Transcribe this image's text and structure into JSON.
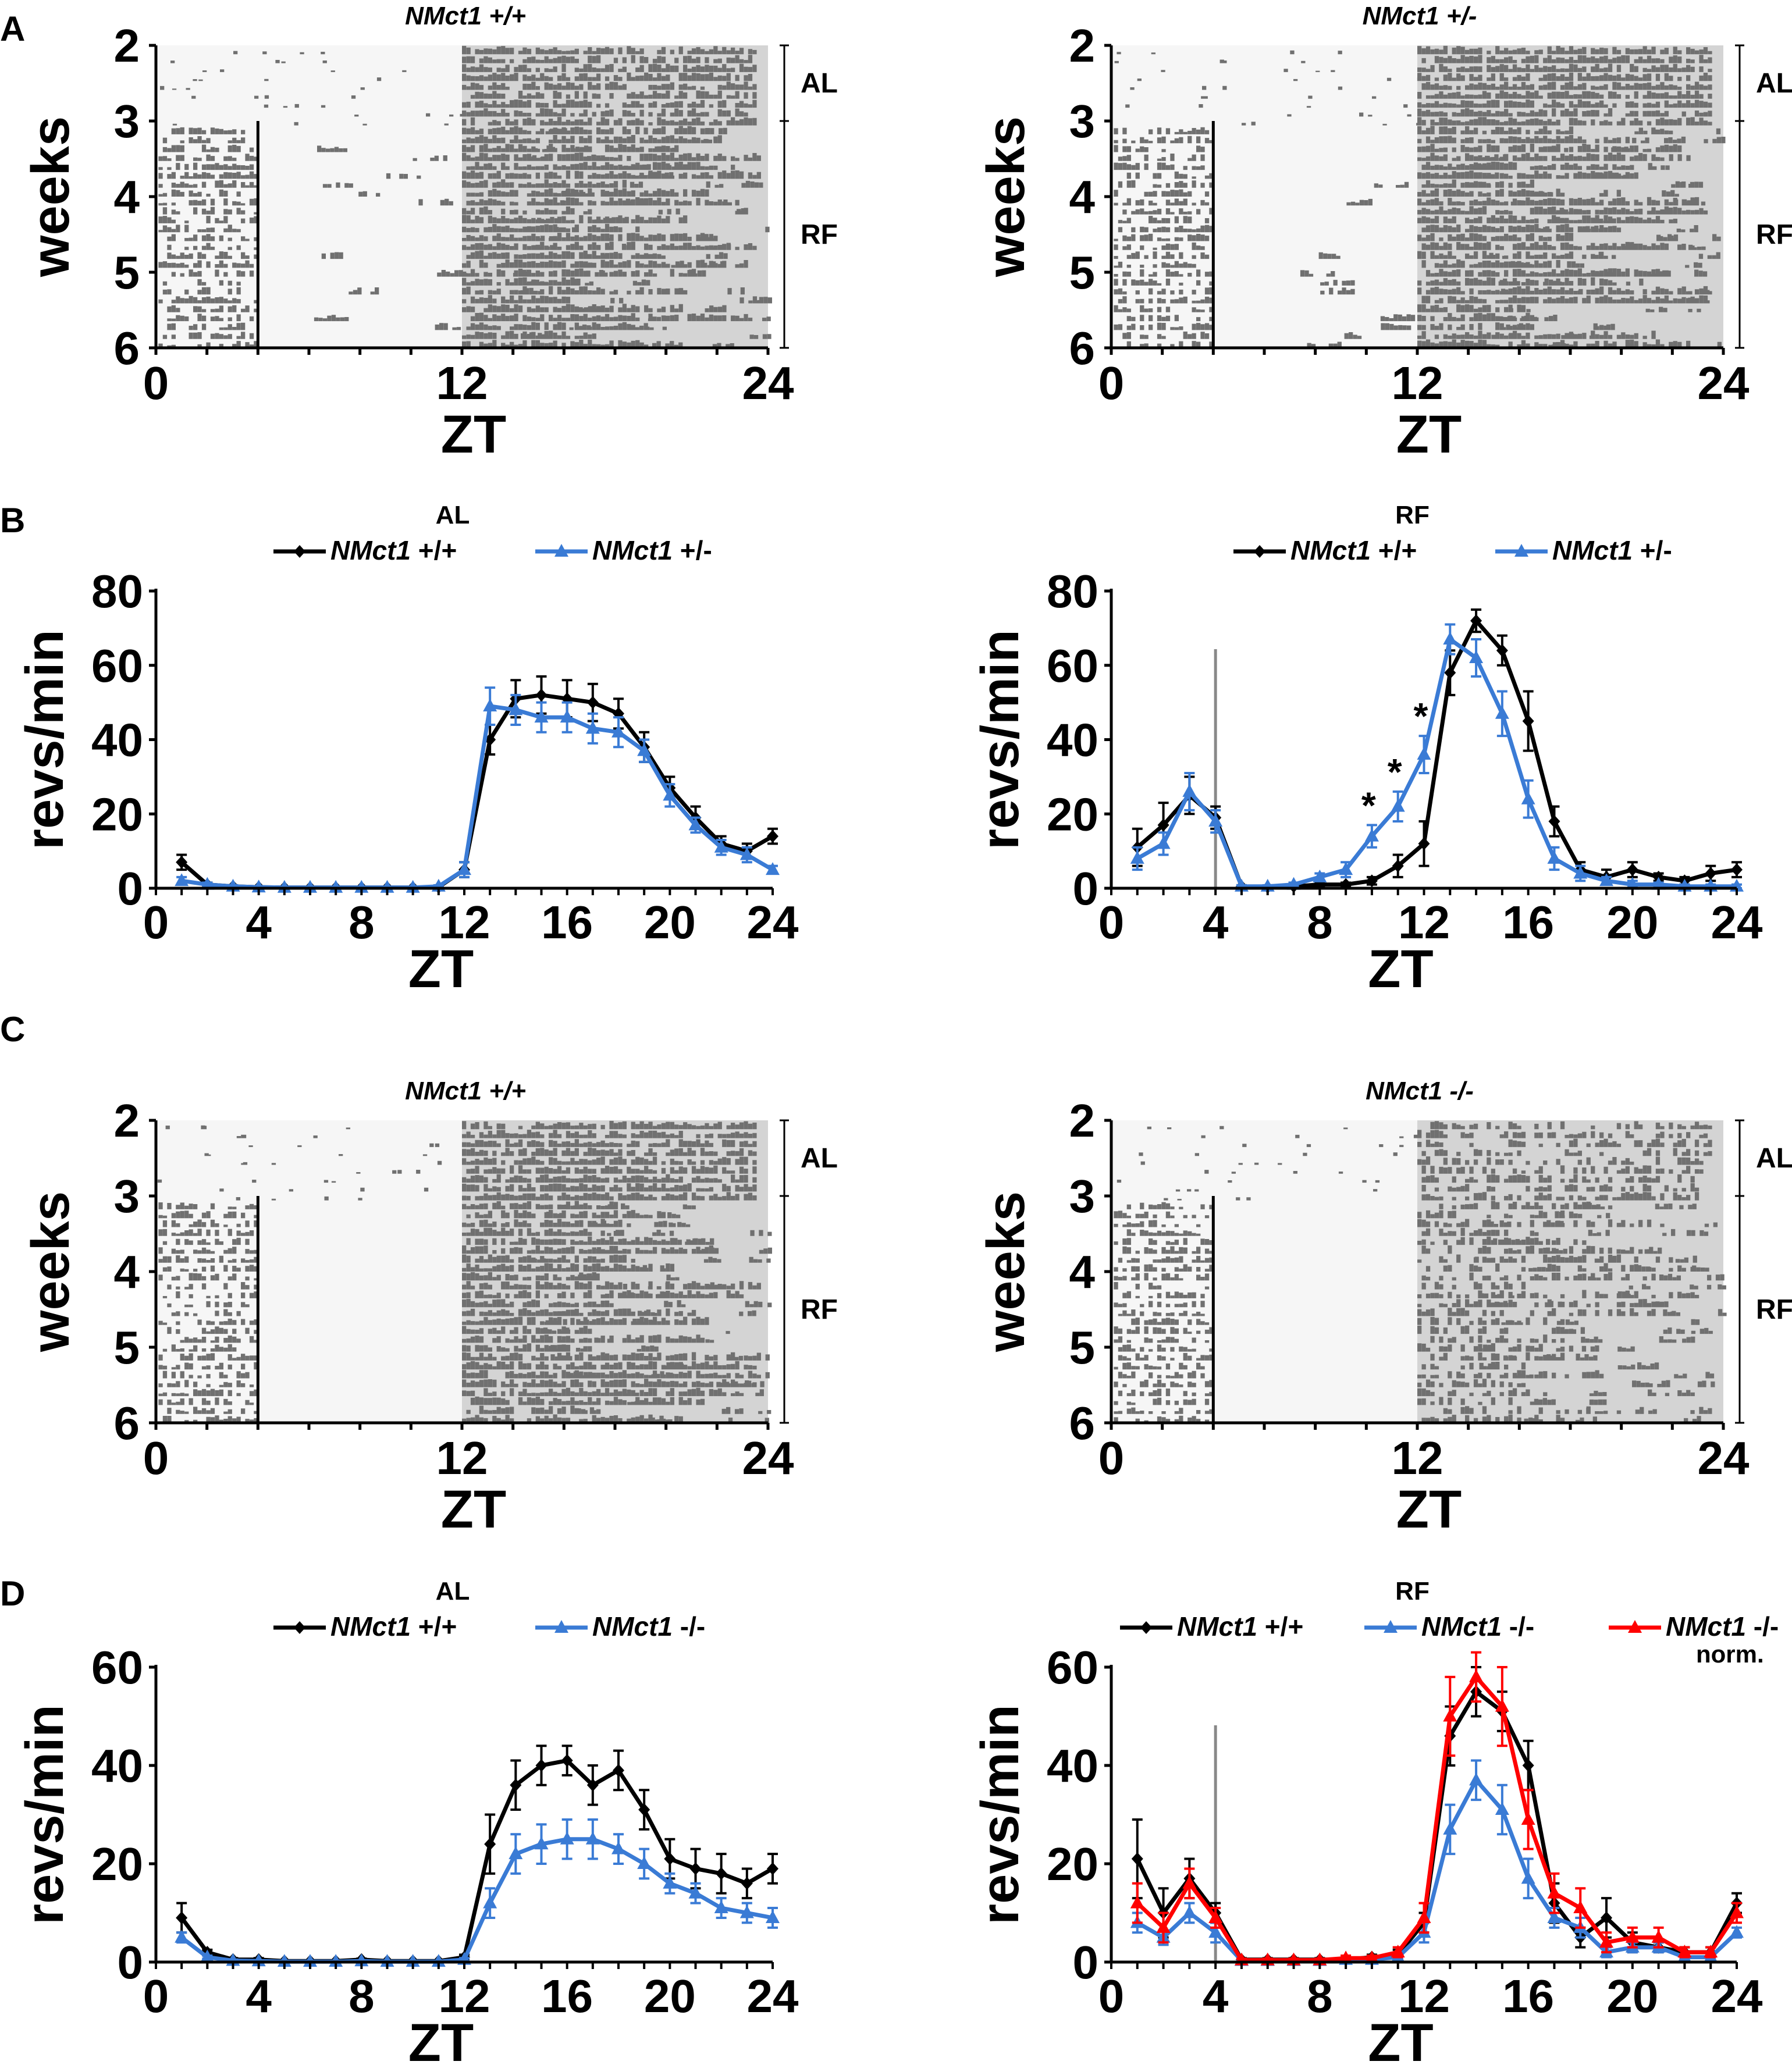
{
  "panel_letters": [
    "A",
    "B",
    "C",
    "D"
  ],
  "actograms": [
    {
      "id": "A-left",
      "panel": "A",
      "title": "NMct1 +/+",
      "ylabel": "weeks",
      "xlabel": "ZT",
      "week_ticks": [
        "2",
        "3",
        "4",
        "5",
        "6"
      ],
      "zt_ticks": [
        "0",
        "12",
        "24"
      ],
      "phase_labels": [
        "AL",
        "RF"
      ],
      "feeding_window_zt": [
        0,
        4
      ],
      "rf_start_week": 3
    },
    {
      "id": "A-right",
      "panel": "A",
      "title": "NMct1 +/-",
      "ylabel": "weeks",
      "xlabel": "ZT",
      "week_ticks": [
        "2",
        "3",
        "4",
        "5",
        "6"
      ],
      "zt_ticks": [
        "0",
        "12",
        "24"
      ],
      "phase_labels": [
        "AL",
        "RF"
      ],
      "feeding_window_zt": [
        0,
        4
      ],
      "rf_start_week": 3
    },
    {
      "id": "C-left",
      "panel": "C",
      "title": "NMct1 +/+",
      "ylabel": "weeks",
      "xlabel": "ZT",
      "week_ticks": [
        "2",
        "3",
        "4",
        "5",
        "6"
      ],
      "zt_ticks": [
        "0",
        "12",
        "24"
      ],
      "phase_labels": [
        "AL",
        "RF"
      ],
      "feeding_window_zt": [
        0,
        4
      ],
      "rf_start_week": 3
    },
    {
      "id": "C-right",
      "panel": "C",
      "title": "NMct1 -/-",
      "ylabel": "weeks",
      "xlabel": "ZT",
      "week_ticks": [
        "2",
        "3",
        "4",
        "5",
        "6"
      ],
      "zt_ticks": [
        "0",
        "12",
        "24"
      ],
      "phase_labels": [
        "AL",
        "RF"
      ],
      "feeding_window_zt": [
        0,
        4
      ],
      "rf_start_week": 3
    }
  ],
  "chart_data": [
    {
      "id": "B-left",
      "type": "line",
      "title": "AL",
      "xlabel": "ZT",
      "ylabel": "revs/min",
      "xlim": [
        0,
        24
      ],
      "ylim": [
        0,
        80
      ],
      "xticks": [
        0,
        4,
        8,
        12,
        16,
        20,
        24
      ],
      "yticks": [
        0,
        20,
        40,
        60,
        80
      ],
      "x": [
        1,
        2,
        3,
        4,
        5,
        6,
        7,
        8,
        9,
        10,
        11,
        12,
        13,
        14,
        15,
        16,
        17,
        18,
        19,
        20,
        21,
        22,
        23,
        24
      ],
      "series": [
        {
          "name": "NMct1 +/+",
          "color": "#000000",
          "marker": "diamond",
          "values": [
            7,
            1,
            0.5,
            0.3,
            0.2,
            0.2,
            0.2,
            0.2,
            0.2,
            0.2,
            0.3,
            5,
            40,
            51,
            52,
            51,
            50,
            47,
            38,
            27,
            19,
            12,
            10,
            14
          ],
          "errors": [
            2,
            0.5,
            0.3,
            0.2,
            0.1,
            0.1,
            0.1,
            0.1,
            0.1,
            0.1,
            0.2,
            2,
            4,
            5,
            5,
            5,
            5,
            4,
            4,
            3,
            3,
            2,
            2,
            2
          ]
        },
        {
          "name": "NMct1 +/-",
          "color": "#3a7bd5",
          "marker": "triangle",
          "values": [
            2,
            1,
            0.5,
            0.3,
            0.2,
            0.2,
            0.2,
            0.2,
            0.2,
            0.2,
            0.5,
            5,
            49,
            48,
            46,
            46,
            43,
            42,
            37,
            25,
            17,
            11,
            9,
            5
          ],
          "errors": [
            1,
            0.5,
            0.3,
            0.2,
            0.1,
            0.1,
            0.1,
            0.1,
            0.1,
            0.1,
            0.3,
            2,
            5,
            4,
            4,
            4,
            4,
            4,
            3,
            3,
            2,
            2,
            2,
            1
          ]
        }
      ]
    },
    {
      "id": "B-right",
      "type": "line",
      "title": "RF",
      "xlabel": "ZT",
      "ylabel": "revs/min",
      "xlim": [
        0,
        24
      ],
      "ylim": [
        0,
        80
      ],
      "xticks": [
        0,
        4,
        8,
        12,
        16,
        20,
        24
      ],
      "yticks": [
        0,
        20,
        40,
        60,
        80
      ],
      "feeding_end_zt": 4,
      "significance_marks": [
        "*",
        "*",
        "*"
      ],
      "significance_x": [
        10,
        11,
        12
      ],
      "x": [
        1,
        2,
        3,
        4,
        5,
        6,
        7,
        8,
        9,
        10,
        11,
        12,
        13,
        14,
        15,
        16,
        17,
        18,
        19,
        20,
        21,
        22,
        23,
        24
      ],
      "series": [
        {
          "name": "NMct1 +/+",
          "color": "#000000",
          "marker": "diamond",
          "values": [
            11,
            17,
            25,
            19,
            0.5,
            0.3,
            0.5,
            1,
            1,
            2,
            6,
            12,
            58,
            72,
            64,
            45,
            18,
            5,
            3,
            5,
            3,
            2,
            4,
            5
          ],
          "errors": [
            5,
            6,
            5,
            3,
            0.3,
            0.2,
            0.3,
            0.5,
            0.5,
            1,
            3,
            6,
            6,
            3,
            4,
            8,
            4,
            2,
            2,
            2,
            1,
            1,
            2,
            2
          ]
        },
        {
          "name": "NMct1 +/-",
          "color": "#3a7bd5",
          "marker": "triangle",
          "values": [
            8,
            12,
            26,
            18,
            0.5,
            0.5,
            1,
            3,
            5,
            14,
            22,
            36,
            67,
            62,
            47,
            24,
            8,
            4,
            2,
            1,
            1,
            0.5,
            0.5,
            0.5
          ],
          "errors": [
            3,
            3,
            5,
            3,
            0.3,
            0.3,
            0.5,
            1,
            2,
            3,
            4,
            5,
            4,
            5,
            6,
            5,
            3,
            2,
            1,
            1,
            0.5,
            0.5,
            0.5,
            0.5
          ]
        }
      ]
    },
    {
      "id": "D-left",
      "type": "line",
      "title": "AL",
      "xlabel": "ZT",
      "ylabel": "revs/min",
      "xlim": [
        0,
        24
      ],
      "ylim": [
        0,
        60
      ],
      "xticks": [
        0,
        4,
        8,
        12,
        16,
        20,
        24
      ],
      "yticks": [
        0,
        20,
        40,
        60
      ],
      "x": [
        1,
        2,
        3,
        4,
        5,
        6,
        7,
        8,
        9,
        10,
        11,
        12,
        13,
        14,
        15,
        16,
        17,
        18,
        19,
        20,
        21,
        22,
        23,
        24
      ],
      "series": [
        {
          "name": "NMct1 +/+",
          "color": "#000000",
          "marker": "diamond",
          "values": [
            9,
            2,
            0.5,
            0.5,
            0.2,
            0.2,
            0.2,
            0.5,
            0.2,
            0.2,
            0.2,
            1,
            24,
            36,
            40,
            41,
            36,
            39,
            31,
            21,
            19,
            18,
            16,
            19
          ],
          "errors": [
            3,
            0.5,
            0.3,
            0.3,
            0.1,
            0.1,
            0.1,
            0.2,
            0.1,
            0.1,
            0.1,
            0.5,
            6,
            5,
            4,
            3,
            4,
            4,
            4,
            4,
            4,
            4,
            3,
            3
          ]
        },
        {
          "name": "NMct1 -/-",
          "color": "#3a7bd5",
          "marker": "triangle",
          "values": [
            5,
            1,
            0.3,
            0.2,
            0.1,
            0.1,
            0.1,
            0.2,
            0.1,
            0.1,
            0.1,
            0.5,
            12,
            22,
            24,
            25,
            25,
            23,
            20,
            16,
            14,
            11,
            10,
            9
          ],
          "errors": [
            1,
            0.3,
            0.2,
            0.1,
            0.1,
            0.1,
            0.1,
            0.1,
            0.1,
            0.1,
            0.1,
            0.3,
            3,
            4,
            4,
            4,
            4,
            3,
            3,
            2,
            2,
            2,
            2,
            2
          ]
        }
      ]
    },
    {
      "id": "D-right",
      "type": "line",
      "title": "RF",
      "xlabel": "ZT",
      "ylabel": "revs/min",
      "xlim": [
        0,
        24
      ],
      "ylim": [
        0,
        60
      ],
      "xticks": [
        0,
        4,
        8,
        12,
        16,
        20,
        24
      ],
      "yticks": [
        0,
        20,
        40,
        60
      ],
      "feeding_end_zt": 4,
      "x": [
        1,
        2,
        3,
        4,
        5,
        6,
        7,
        8,
        9,
        10,
        11,
        12,
        13,
        14,
        15,
        16,
        17,
        18,
        19,
        20,
        21,
        22,
        23,
        24
      ],
      "series": [
        {
          "name": "NMct1 +/+",
          "color": "#000000",
          "marker": "diamond",
          "values": [
            21,
            10,
            17,
            10,
            0.5,
            0.5,
            0.5,
            0.5,
            0.5,
            1,
            1.5,
            8,
            46,
            55,
            51,
            40,
            12,
            5,
            9,
            4,
            3,
            2,
            2,
            12
          ],
          "errors": [
            8,
            5,
            4,
            2,
            0.3,
            0.3,
            0.3,
            0.3,
            0.3,
            0.5,
            1,
            2,
            6,
            5,
            4,
            5,
            4,
            2,
            4,
            2,
            1,
            1,
            1,
            2
          ]
        },
        {
          "name": "NMct1 -/-",
          "color": "#3a7bd5",
          "marker": "triangle",
          "values": [
            8,
            5,
            10,
            6,
            0.3,
            0.3,
            0.3,
            0.3,
            0.5,
            0.5,
            1,
            6,
            27,
            37,
            31,
            17,
            9,
            7,
            2,
            3,
            3,
            1,
            1,
            6
          ],
          "errors": [
            2,
            1.5,
            2,
            2,
            0.2,
            0.2,
            0.2,
            0.2,
            0.3,
            0.3,
            0.5,
            2,
            5,
            4,
            5,
            4,
            2,
            2,
            1,
            1,
            1,
            0.5,
            0.5,
            1
          ]
        },
        {
          "name": "NMct1 -/- norm.",
          "color": "#ff0000",
          "marker": "triangle",
          "values": [
            12,
            7,
            16,
            9,
            0.4,
            0.4,
            0.4,
            0.4,
            0.8,
            0.8,
            2,
            9,
            50,
            58,
            52,
            29,
            14,
            11,
            4,
            5,
            5,
            2,
            2,
            10
          ],
          "errors": [
            4,
            3,
            3,
            2,
            0.3,
            0.3,
            0.3,
            0.3,
            0.5,
            0.5,
            1,
            3,
            8,
            5,
            8,
            6,
            4,
            4,
            2,
            2,
            2,
            1,
            1,
            2
          ]
        }
      ]
    }
  ]
}
